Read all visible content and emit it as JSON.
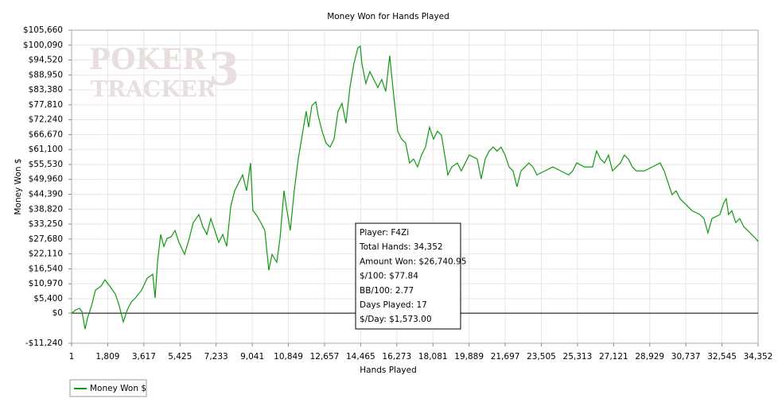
{
  "chart_data": {
    "type": "line",
    "title": "Money Won for Hands Played",
    "xlabel": "Hands Played",
    "ylabel": "Money Won $",
    "watermark": [
      "POKER",
      "TRACKER",
      "3"
    ],
    "annotation": [
      "Player: F4Zi",
      "Total Hands: 34,352",
      "Amount Won: $26,740.95",
      "$/100: $77.84",
      "BB/100: 2.77",
      "Days Played: 17",
      "$/Day: $1,573.00"
    ],
    "zero_line": true,
    "grid": true,
    "legend": "bottom-left",
    "xlim": [
      1,
      34352
    ],
    "ylim": [
      -11240,
      105660
    ],
    "xticks": [
      1,
      {
        "value": 1809,
        "label": "1,809"
      },
      {
        "value": 3617,
        "label": "3,617"
      },
      {
        "value": 5425,
        "label": "5,425"
      },
      {
        "value": 7233,
        "label": "7,233"
      },
      {
        "value": 9041,
        "label": "9,041"
      },
      {
        "value": 10849,
        "label": "10,849"
      },
      {
        "value": 12657,
        "label": "12,657"
      },
      {
        "value": 14465,
        "label": "14,465"
      },
      {
        "value": 16273,
        "label": "16,273"
      },
      {
        "value": 18081,
        "label": "18,081"
      },
      {
        "value": 19889,
        "label": "19,889"
      },
      {
        "value": 21697,
        "label": "21,697"
      },
      {
        "value": 23505,
        "label": "23,505"
      },
      {
        "value": 25313,
        "label": "25,313"
      },
      {
        "value": 27121,
        "label": "27,121"
      },
      {
        "value": 28929,
        "label": "28,929"
      },
      {
        "value": 30737,
        "label": "30,737"
      },
      {
        "value": 32545,
        "label": "32,545"
      },
      {
        "value": 34352,
        "label": "34,352"
      }
    ],
    "yticks": [
      {
        "value": -11240,
        "label": "-$11,240"
      },
      {
        "value": 0,
        "label": "$0"
      },
      {
        "value": 5400,
        "label": "$5,400"
      },
      {
        "value": 10970,
        "label": "$10,970"
      },
      {
        "value": 16540,
        "label": "$16,540"
      },
      {
        "value": 22110,
        "label": "$22,110"
      },
      {
        "value": 27680,
        "label": "$27,680"
      },
      {
        "value": 33250,
        "label": "$33,250"
      },
      {
        "value": 38820,
        "label": "$38,820"
      },
      {
        "value": 44390,
        "label": "$44,390"
      },
      {
        "value": 49960,
        "label": "$49,960"
      },
      {
        "value": 55530,
        "label": "$55,530"
      },
      {
        "value": 61100,
        "label": "$61,100"
      },
      {
        "value": 66670,
        "label": "$66,670"
      },
      {
        "value": 72240,
        "label": "$72,240"
      },
      {
        "value": 77810,
        "label": "$77,810"
      },
      {
        "value": 83380,
        "label": "$83,380"
      },
      {
        "value": 88950,
        "label": "$88,950"
      },
      {
        "value": 94520,
        "label": "$94,520"
      },
      {
        "value": 100090,
        "label": "$100,090"
      },
      {
        "value": 105660,
        "label": "$105,660"
      }
    ],
    "x": [
      1,
      199,
      398,
      517,
      677,
      796,
      995,
      1194,
      1473,
      1672,
      1910,
      2189,
      2388,
      2587,
      2786,
      2985,
      3184,
      3502,
      3781,
      4060,
      4179,
      4298,
      4458,
      4617,
      4776,
      4975,
      5174,
      5373,
      5652,
      5890,
      6089,
      6368,
      6567,
      6766,
      6965,
      7164,
      7363,
      7562,
      7761,
      7960,
      8159,
      8358,
      8557,
      8756,
      8955,
      9074,
      9234,
      9472,
      9671,
      9870,
      10030,
      10268,
      10428,
      10627,
      10746,
      10945,
      11144,
      11343,
      11542,
      11741,
      11860,
      12020,
      12219,
      12338,
      12537,
      12736,
      12935,
      13134,
      13333,
      13532,
      13731,
      13930,
      14129,
      14328,
      14447,
      14527,
      14726,
      14925,
      15124,
      15323,
      15522,
      15721,
      15920,
      16119,
      16318,
      16517,
      16716,
      16915,
      17114,
      17313,
      17512,
      17711,
      17910,
      18109,
      18308,
      18507,
      18706,
      18825,
      19024,
      19303,
      19502,
      19900,
      20298,
      20497,
      20696,
      20895,
      21094,
      21293,
      21492,
      21691,
      21890,
      22089,
      22288,
      22487,
      22885,
      23084,
      23283,
      23681,
      24079,
      24477,
      24875,
      25074,
      25273,
      25671,
      26069,
      26268,
      26467,
      26666,
      26865,
      27064,
      27462,
      27661,
      27860,
      28059,
      28258,
      28656,
      29054,
      29452,
      29651,
      29850,
      30049,
      30248,
      30447,
      30646,
      31044,
      31442,
      31641,
      31840,
      32039,
      32437,
      32636,
      32755,
      32875,
      33034,
      33233,
      33432,
      33631,
      33830,
      34029,
      34228,
      34352
    ],
    "series": [
      {
        "name": "Money Won $",
        "color": "#119911",
        "values": [
          0,
          1190,
          1780,
          590,
          -5930,
          -1780,
          2670,
          8600,
          10090,
          12460,
          10090,
          7120,
          2670,
          -3260,
          1190,
          4150,
          5640,
          8600,
          13050,
          14540,
          5640,
          18990,
          29370,
          24920,
          27890,
          28480,
          30860,
          26410,
          21960,
          27890,
          33820,
          36790,
          32340,
          29370,
          35310,
          30860,
          26410,
          29370,
          24920,
          39760,
          45690,
          48660,
          51630,
          45690,
          56080,
          38270,
          36790,
          33820,
          30860,
          16020,
          21960,
          18990,
          27890,
          45690,
          39760,
          30860,
          45690,
          57560,
          66460,
          75360,
          69430,
          77440,
          78920,
          73880,
          67940,
          63490,
          62010,
          64980,
          75360,
          78330,
          70910,
          84260,
          93160,
          99100,
          99690,
          93160,
          85750,
          90200,
          87230,
          84260,
          87230,
          82780,
          96130,
          81300,
          67940,
          64980,
          63490,
          56080,
          57560,
          54590,
          59040,
          62010,
          69430,
          64980,
          67940,
          66460,
          57560,
          51630,
          54590,
          56080,
          53110,
          59040,
          57560,
          50140,
          57560,
          60530,
          62010,
          60530,
          62010,
          59040,
          54590,
          53110,
          47180,
          53110,
          56080,
          54590,
          51630,
          53110,
          54590,
          53110,
          51630,
          53110,
          56080,
          54590,
          54590,
          60530,
          57560,
          56080,
          59040,
          53110,
          56080,
          59040,
          57560,
          54590,
          53110,
          53110,
          54590,
          56080,
          53110,
          48660,
          44210,
          45690,
          42720,
          41240,
          38270,
          36790,
          35310,
          29970,
          35310,
          36790,
          41240,
          42720,
          36790,
          38270,
          33820,
          35310,
          32340,
          30860,
          29370,
          27890,
          26740.95
        ]
      }
    ]
  }
}
